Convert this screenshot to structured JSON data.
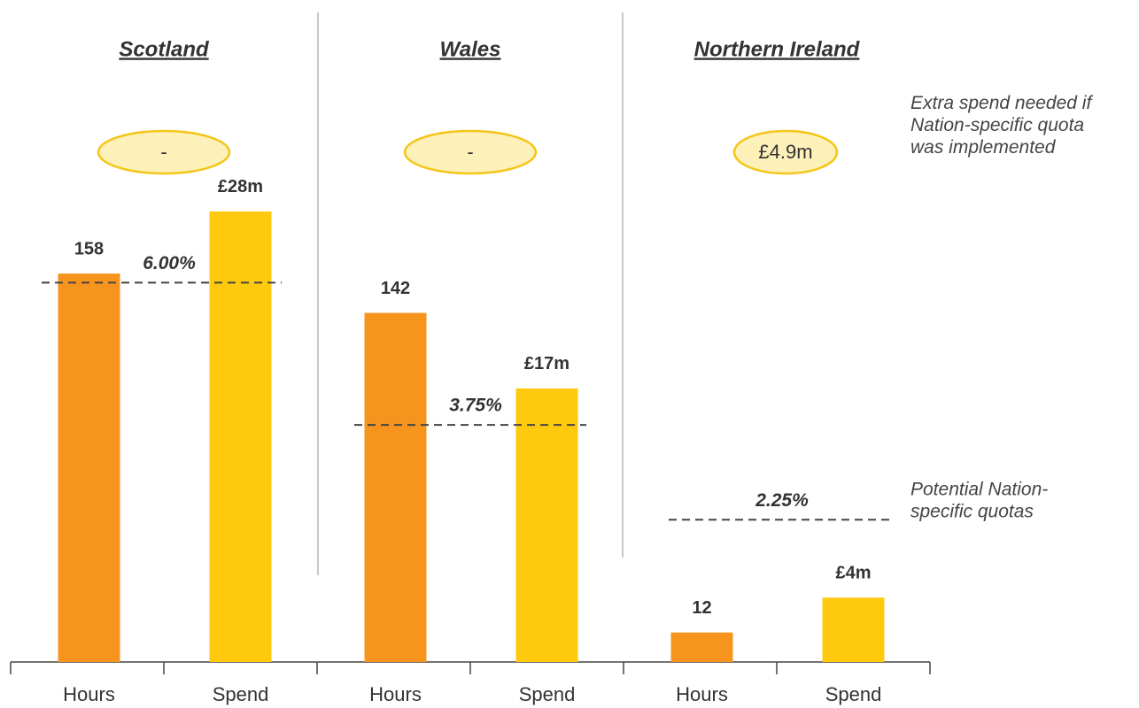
{
  "chart_data": {
    "type": "bar",
    "categories": [
      "Scotland",
      "Wales",
      "Northern Ireland"
    ],
    "series": [
      {
        "name": "Hours",
        "color": "#f7941d",
        "values": [
          158,
          142,
          12
        ]
      },
      {
        "name": "Spend",
        "color": "#ffc90e",
        "axis": "y2",
        "values": [
          28,
          17,
          4
        ],
        "value_labels": [
          "£28m",
          "£17m",
          "£4m"
        ]
      }
    ],
    "ylim": [
      0,
      180
    ],
    "y2lim": [
      0,
      27.5
    ],
    "quotas": {
      "values": [
        6,
        3.75,
        2.25
      ],
      "labels": [
        "6.00%",
        "3.75%",
        "2.25%"
      ],
      "lim": [
        0,
        7
      ]
    },
    "extra_spend": [
      "-",
      "-",
      "£4.9m"
    ],
    "annotations": [
      [
        "Extra spend needed if",
        "Nation-specific quota",
        "was implemented"
      ],
      [
        "Potential Nation-",
        "specific quotas"
      ]
    ]
  }
}
